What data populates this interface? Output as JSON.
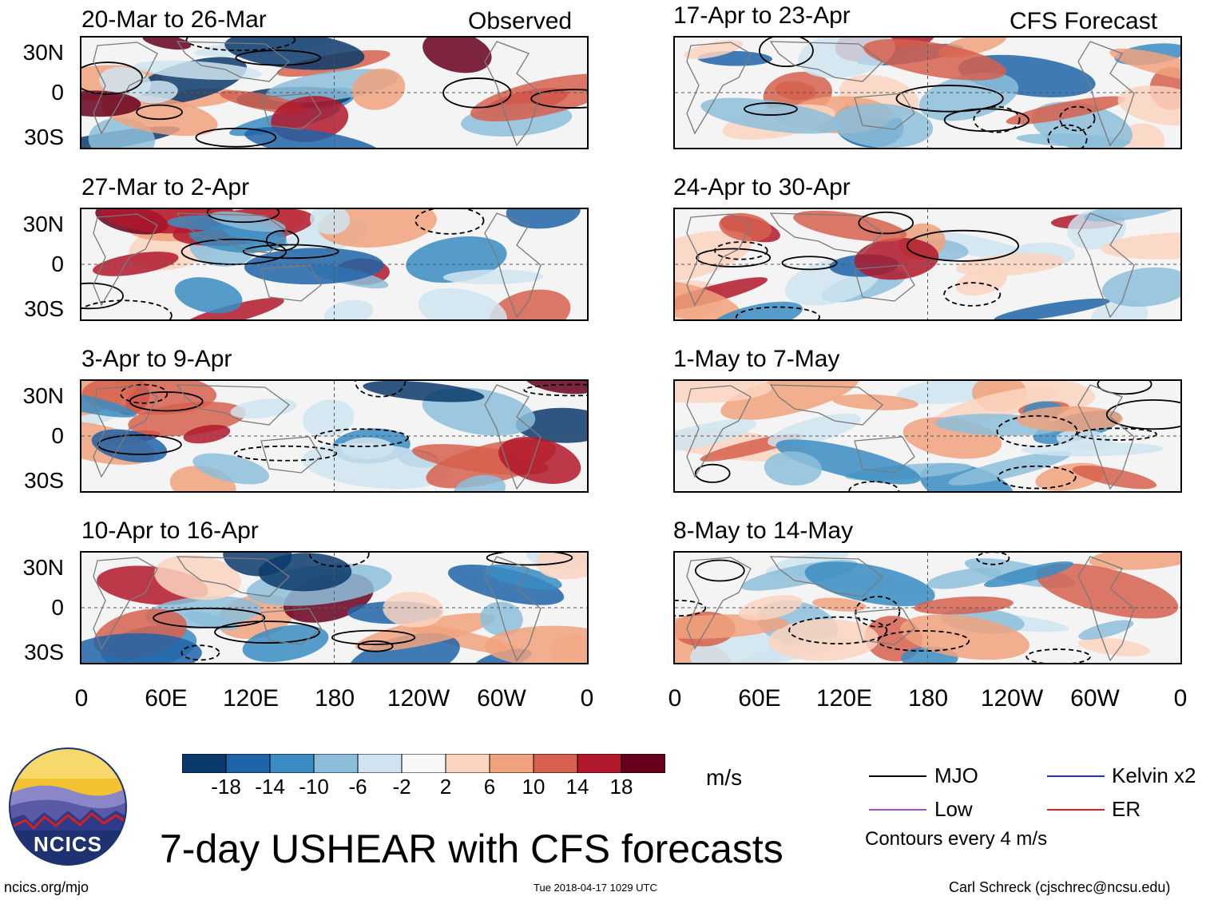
{
  "chart_data": {
    "type": "heatmap",
    "title": "7-day USHEAR with CFS forecasts",
    "variable": "USHEAR",
    "units": "m/s",
    "groups": {
      "observed": "Observed",
      "forecast": "CFS Forecast"
    },
    "lat_ticks": [
      "30N",
      "0",
      "30S"
    ],
    "lon_ticks": [
      "0",
      "60E",
      "120E",
      "180",
      "120W",
      "60W",
      "0"
    ],
    "lon_range": [
      0,
      360
    ],
    "lat_range": [
      -40,
      40
    ],
    "panels": [
      {
        "title": "20-Mar to 26-Mar",
        "source": "Observed"
      },
      {
        "title": "27-Mar to 2-Apr",
        "source": "Observed"
      },
      {
        "title": "3-Apr to 9-Apr",
        "source": "Observed"
      },
      {
        "title": "10-Apr to 16-Apr",
        "source": "Observed"
      },
      {
        "title": "17-Apr to 23-Apr",
        "source": "CFS Forecast"
      },
      {
        "title": "24-Apr to 30-Apr",
        "source": "CFS Forecast"
      },
      {
        "title": "1-May to 7-May",
        "source": "CFS Forecast"
      },
      {
        "title": "8-May to 14-May",
        "source": "CFS Forecast"
      }
    ],
    "colorbar": {
      "labels": [
        "-18",
        "-14",
        "-10",
        "-6",
        "-2",
        "2",
        "6",
        "10",
        "14",
        "18"
      ],
      "colors": [
        "#0a3a6b",
        "#1f64a8",
        "#3a8cc2",
        "#8cbedb",
        "#cfe4f0",
        "#f7f7f7",
        "#fbd4c0",
        "#f0a27e",
        "#d6604d",
        "#b2182b",
        "#67001f"
      ]
    },
    "legend": [
      {
        "label": "MJO",
        "color": "#000000"
      },
      {
        "label": "Kelvin x2",
        "color": "#1f2fd6"
      },
      {
        "label": "Low",
        "color": "#9b4fd6"
      },
      {
        "label": "ER",
        "color": "#e0201b"
      }
    ],
    "contour_note": "Contours every 4 m/s"
  },
  "footer": {
    "logo_text": "NCICS",
    "website": "ncics.org/mjo",
    "timestamp": "Tue 2018-04-17 1029 UTC",
    "credit": "Carl Schreck (cjschrec@ncsu.edu)"
  }
}
